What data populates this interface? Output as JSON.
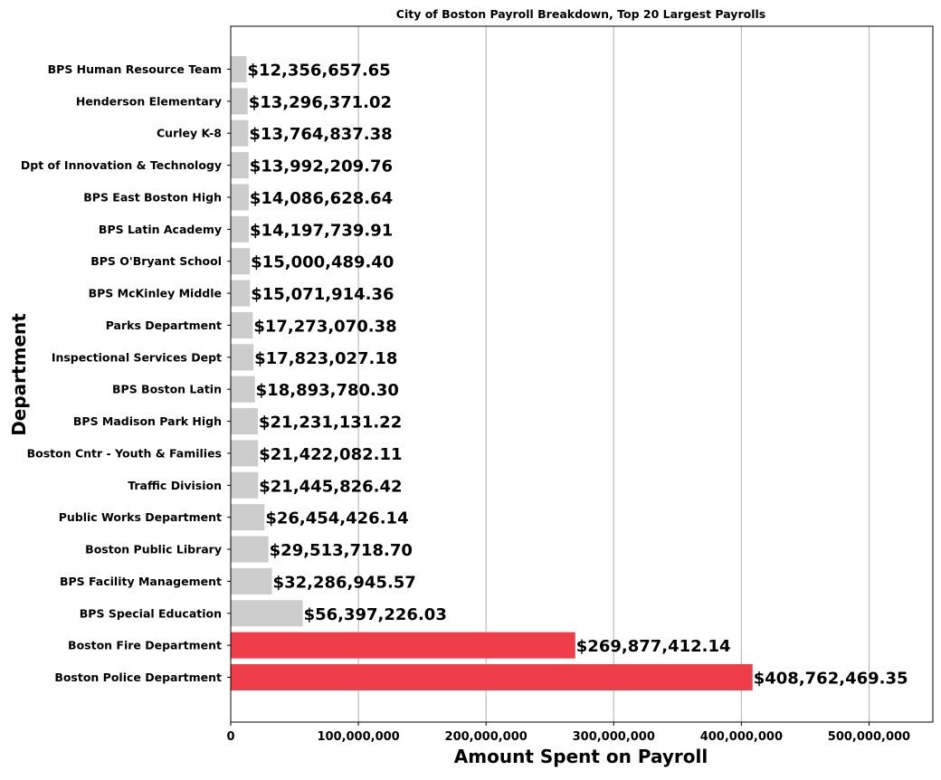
{
  "chart_data": {
    "type": "bar",
    "orientation": "horizontal",
    "title": "City of Boston Payroll Breakdown, Top 20 Largest Payrolls",
    "xlabel": "Amount Spent on Payroll",
    "ylabel": "Department",
    "xlim": [
      0,
      550000000
    ],
    "xticks": [
      0,
      100000000,
      200000000,
      300000000,
      400000000,
      500000000
    ],
    "xtick_labels": [
      "0",
      "100,000,000",
      "200,000,000",
      "300,000,000",
      "400,000,000",
      "500,000,000"
    ],
    "grid": "vertical",
    "colors": {
      "highlight": "#EF3E4A",
      "default": "#CCCCCC"
    },
    "categories": [
      "BPS Human Resource Team",
      "Henderson Elementary",
      "Curley K-8",
      "Dpt of Innovation & Technology",
      "BPS East Boston High",
      "BPS Latin Academy",
      "BPS O'Bryant School",
      "BPS McKinley Middle",
      "Parks Department",
      "Inspectional Services Dept",
      "BPS Boston Latin",
      "BPS Madison Park High",
      "Boston Cntr - Youth & Families",
      "Traffic Division",
      "Public Works Department",
      "Boston Public Library",
      "BPS Facility Management",
      "BPS Special Education",
      "Boston Fire Department",
      "Boston Police Department"
    ],
    "values": [
      12356657.65,
      13296371.02,
      13764837.38,
      13992209.76,
      14086628.64,
      14197739.91,
      15000489.4,
      15071914.36,
      17273070.38,
      17823027.18,
      18893780.3,
      21231131.22,
      21422082.11,
      21445826.42,
      26454426.14,
      29513718.7,
      32286945.57,
      56397226.03,
      269877412.14,
      408762469.35
    ],
    "value_labels": [
      "$12,356,657.65",
      "$13,296,371.02",
      "$13,764,837.38",
      "$13,992,209.76",
      "$14,086,628.64",
      "$14,197,739.91",
      "$15,000,489.40",
      "$15,071,914.36",
      "$17,273,070.38",
      "$17,823,027.18",
      "$18,893,780.30",
      "$21,231,131.22",
      "$21,422,082.11",
      "$21,445,826.42",
      "$26,454,426.14",
      "$29,513,718.70",
      "$32,286,945.57",
      "$56,397,226.03",
      "$269,877,412.14",
      "$408,762,469.35"
    ],
    "highlighted": [
      "Boston Fire Department",
      "Boston Police Department"
    ]
  }
}
